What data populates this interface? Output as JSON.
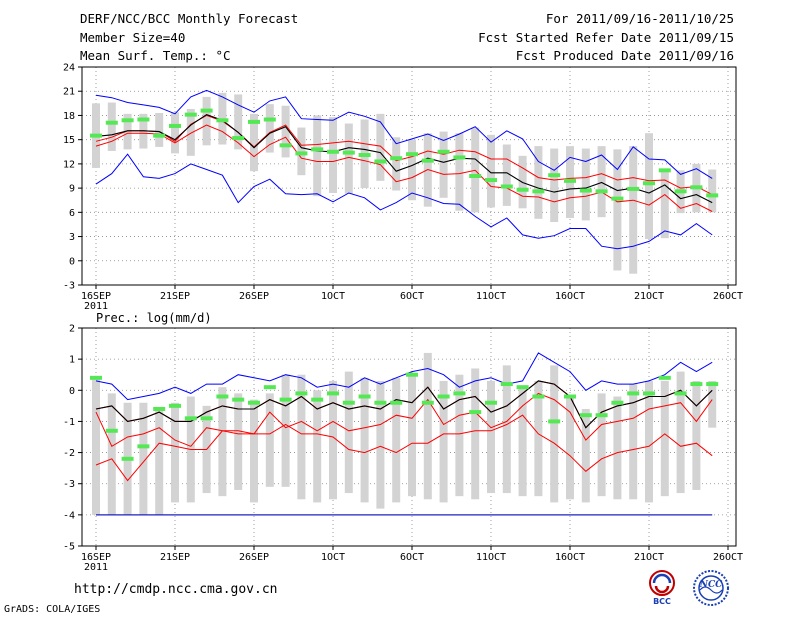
{
  "header": {
    "title": "DERF/NCC/BCC Monthly Forecast",
    "member_size": "Member Size=40",
    "variable": "Mean Surf. Temp.: °C",
    "forecast_period": "For 2011/09/16-2011/10/25",
    "refer_date": "Fcst Started Refer Date 2011/09/15",
    "produced_date": "Fcst Produced Date 2011/09/16"
  },
  "footer": {
    "url": "http://cmdp.ncc.cma.gov.cn",
    "credit": "GrADS: COLA/IGES",
    "logo_bcc": "BCC",
    "logo_ncc": "NCC"
  },
  "colors": {
    "max_line": "#0000ff",
    "min_line": "#ff0000",
    "ensemble_mean": "#000000",
    "bar": "#d3d3d3",
    "marker": "#55e855",
    "grid": "#888888",
    "bottom_floor": "#2020c0"
  },
  "chart_data": [
    {
      "type": "line",
      "title": "Mean Surf. Temp.: °C",
      "ylabel": "°C",
      "ylim": [
        -3,
        24
      ],
      "yticks": [
        -3,
        0,
        3,
        6,
        9,
        12,
        15,
        18,
        21,
        24
      ],
      "x_day_index": [
        0,
        1,
        2,
        3,
        4,
        5,
        6,
        7,
        8,
        9,
        10,
        11,
        12,
        13,
        14,
        15,
        16,
        17,
        18,
        19,
        20,
        21,
        22,
        23,
        24,
        25,
        26,
        27,
        28,
        29,
        30,
        31,
        32,
        33,
        34,
        35,
        36,
        37,
        38,
        39
      ],
      "xticks": [
        {
          "index": 0,
          "label": "16SEP",
          "sublabel": "2011"
        },
        {
          "index": 5,
          "label": "21SEP"
        },
        {
          "index": 10,
          "label": "26SEP"
        },
        {
          "index": 15,
          "label": "1OCT"
        },
        {
          "index": 20,
          "label": "6OCT"
        },
        {
          "index": 25,
          "label": "11OCT"
        },
        {
          "index": 30,
          "label": "16OCT"
        },
        {
          "index": 35,
          "label": "21OCT"
        },
        {
          "index": 40,
          "label": "26OCT"
        }
      ],
      "series": [
        {
          "name": "max",
          "values": [
            20.5,
            20.2,
            19.6,
            19.3,
            19.0,
            18.2,
            20.3,
            21.1,
            20.3,
            19.3,
            18.4,
            19.8,
            20.3,
            17.6,
            17.5,
            17.4,
            18.4,
            17.9,
            17.2,
            14.5,
            15.1,
            15.7,
            14.9,
            15.7,
            16.6,
            14.7,
            16.1,
            15.1,
            12.3,
            11.2,
            12.8,
            12.3,
            13.1,
            11.3,
            14.1,
            12.6,
            12.5,
            10.7,
            11.4,
            10.2
          ]
        },
        {
          "name": "upper",
          "values": [
            14.8,
            15.3,
            16.1,
            16.1,
            16.0,
            14.8,
            16.9,
            18.0,
            17.3,
            15.9,
            14.1,
            15.9,
            16.8,
            14.3,
            14.4,
            14.6,
            14.8,
            14.5,
            14.2,
            12.4,
            12.9,
            13.6,
            13.2,
            13.7,
            13.5,
            12.6,
            12.6,
            11.5,
            10.3,
            10.0,
            10.2,
            10.3,
            10.8,
            10.0,
            10.3,
            9.9,
            10.0,
            9.0,
            9.2,
            8.2
          ]
        },
        {
          "name": "mean",
          "values": [
            15.4,
            15.6,
            16.1,
            16.1,
            16.0,
            15.0,
            16.8,
            18.1,
            17.4,
            15.9,
            14.0,
            15.8,
            16.6,
            14.0,
            13.6,
            13.5,
            14.0,
            13.8,
            13.4,
            11.1,
            11.8,
            12.7,
            12.2,
            12.7,
            12.6,
            10.9,
            10.9,
            9.7,
            9.0,
            8.5,
            8.9,
            9.0,
            9.7,
            8.7,
            9.0,
            8.4,
            9.4,
            7.7,
            8.2,
            7.2
          ]
        },
        {
          "name": "lower",
          "values": [
            14.2,
            14.8,
            15.8,
            15.8,
            15.7,
            14.6,
            15.8,
            16.8,
            16.0,
            14.6,
            12.9,
            14.4,
            15.3,
            12.7,
            12.3,
            12.3,
            12.8,
            12.4,
            11.9,
            9.8,
            10.3,
            11.3,
            10.7,
            10.8,
            11.2,
            9.2,
            9.0,
            8.0,
            7.9,
            7.3,
            7.8,
            8.0,
            8.5,
            7.3,
            7.5,
            6.9,
            8.2,
            6.5,
            7.1,
            6.1
          ]
        },
        {
          "name": "min",
          "values": [
            9.5,
            10.8,
            13.2,
            10.4,
            10.2,
            10.8,
            12.0,
            11.3,
            10.6,
            7.2,
            9.2,
            10.1,
            8.3,
            8.2,
            8.3,
            7.3,
            8.4,
            7.8,
            6.3,
            7.2,
            8.4,
            7.8,
            7.1,
            7.0,
            5.5,
            4.2,
            5.3,
            3.2,
            2.8,
            3.1,
            4.0,
            4.0,
            1.8,
            1.5,
            1.8,
            2.4,
            3.7,
            3.2,
            4.6,
            3.2
          ]
        },
        {
          "name": "ensemble_box_top",
          "values": [
            19.5,
            19.6,
            18.2,
            18.2,
            18.3,
            18.4,
            18.8,
            20.3,
            20.8,
            20.6,
            18.2,
            19.4,
            19.2,
            16.5,
            18.0,
            17.8,
            17.0,
            17.5,
            18.2,
            15.3,
            15.0,
            15.8,
            16.0,
            15.8,
            16.5,
            15.6,
            14.4,
            13.0,
            14.2,
            13.9,
            14.2,
            13.9,
            14.2,
            13.8,
            14.2,
            15.8,
            11.4,
            11.2,
            12.0,
            11.3
          ]
        },
        {
          "name": "ensemble_box_bottom",
          "values": [
            11.5,
            13.6,
            13.8,
            13.9,
            14.1,
            13.3,
            13.0,
            14.3,
            14.4,
            13.8,
            11.1,
            13.4,
            12.8,
            10.6,
            8.0,
            8.4,
            8.3,
            9.0,
            9.9,
            8.7,
            7.5,
            6.7,
            7.8,
            6.2,
            6.0,
            6.6,
            6.8,
            6.5,
            5.2,
            4.8,
            5.3,
            5.0,
            5.4,
            -1.2,
            -1.6,
            2.7,
            2.8,
            5.9,
            6.0,
            6.0
          ]
        },
        {
          "name": "marker",
          "values": [
            15.5,
            17.1,
            17.4,
            17.5,
            15.5,
            16.7,
            18.1,
            18.6,
            17.4,
            15.2,
            17.2,
            17.5,
            14.3,
            13.3,
            13.8,
            13.5,
            13.4,
            13.1,
            12.3,
            12.7,
            13.2,
            12.4,
            13.5,
            12.8,
            10.5,
            10.0,
            9.2,
            8.8,
            8.6,
            10.6,
            9.9,
            8.7,
            8.6,
            7.7,
            8.9,
            9.6,
            11.2,
            8.6,
            9.1,
            8.1
          ]
        }
      ]
    },
    {
      "type": "line",
      "title": "Prec.: log(mm/d)",
      "ylabel": "log(mm/d)",
      "ylim": [
        -5,
        2
      ],
      "yticks": [
        -5,
        -4,
        -3,
        -2,
        -1,
        0,
        1,
        2
      ],
      "x_day_index": [
        0,
        1,
        2,
        3,
        4,
        5,
        6,
        7,
        8,
        9,
        10,
        11,
        12,
        13,
        14,
        15,
        16,
        17,
        18,
        19,
        20,
        21,
        22,
        23,
        24,
        25,
        26,
        27,
        28,
        29,
        30,
        31,
        32,
        33,
        34,
        35,
        36,
        37,
        38,
        39
      ],
      "xticks": [
        {
          "index": 0,
          "label": "16SEP",
          "sublabel": "2011"
        },
        {
          "index": 5,
          "label": "21SEP"
        },
        {
          "index": 10,
          "label": "26SEP"
        },
        {
          "index": 15,
          "label": "1OCT"
        },
        {
          "index": 20,
          "label": "6OCT"
        },
        {
          "index": 25,
          "label": "11OCT"
        },
        {
          "index": 30,
          "label": "16OCT"
        },
        {
          "index": 35,
          "label": "21OCT"
        },
        {
          "index": 40,
          "label": "26OCT"
        }
      ],
      "series": [
        {
          "name": "max",
          "values": [
            0.3,
            0.2,
            -0.3,
            -0.2,
            -0.1,
            0.1,
            -0.1,
            0.2,
            0.2,
            0.5,
            0.4,
            0.3,
            0.5,
            0.4,
            0.1,
            0.2,
            0.1,
            0.4,
            0.2,
            0.4,
            0.6,
            0.7,
            0.5,
            0.1,
            0.3,
            0.4,
            0.2,
            0.3,
            1.2,
            0.9,
            0.6,
            0.0,
            0.3,
            0.2,
            0.2,
            0.3,
            0.5,
            0.9,
            0.6,
            0.9
          ]
        },
        {
          "name": "upper",
          "values": [
            -0.6,
            -0.5,
            -1.0,
            -0.9,
            -0.7,
            -1.0,
            -1.0,
            -0.7,
            -0.5,
            -0.6,
            -0.6,
            -0.3,
            -0.5,
            -0.2,
            -0.6,
            -0.4,
            -0.6,
            -0.5,
            -0.6,
            -0.3,
            -0.4,
            0.1,
            -0.6,
            -0.3,
            -0.2,
            -0.7,
            -0.5,
            -0.1,
            0.3,
            0.2,
            -0.2,
            -1.2,
            -0.7,
            -0.5,
            -0.4,
            -0.2,
            -0.2,
            0.0,
            -0.5,
            0.0
          ]
        },
        {
          "name": "mean",
          "values": [
            -0.6,
            -0.5,
            -1.0,
            -0.9,
            -0.7,
            -1.0,
            -1.0,
            -0.7,
            -0.5,
            -0.6,
            -0.6,
            -0.3,
            -0.5,
            -0.2,
            -0.6,
            -0.4,
            -0.6,
            -0.5,
            -0.6,
            -0.3,
            -0.4,
            0.1,
            -0.6,
            -0.3,
            -0.2,
            -0.7,
            -0.5,
            -0.1,
            0.3,
            0.2,
            -0.2,
            -1.2,
            -0.7,
            -0.5,
            -0.4,
            -0.2,
            -0.2,
            0.0,
            -0.5,
            0.0
          ]
        },
        {
          "name": "lower",
          "values": [
            -0.7,
            -1.8,
            -1.5,
            -1.4,
            -1.2,
            -1.6,
            -1.8,
            -1.2,
            -1.3,
            -1.3,
            -1.4,
            -0.7,
            -1.2,
            -1.0,
            -1.3,
            -1.0,
            -1.3,
            -1.2,
            -1.1,
            -0.8,
            -0.9,
            -0.3,
            -1.1,
            -0.8,
            -0.7,
            -1.2,
            -1.0,
            -0.5,
            -0.1,
            -0.3,
            -0.7,
            -1.6,
            -1.1,
            -1.0,
            -0.9,
            -0.6,
            -0.5,
            -0.4,
            -1.0,
            -0.3
          ]
        },
        {
          "name": "min",
          "values": [
            -2.4,
            -2.2,
            -2.9,
            -2.3,
            -1.7,
            -1.8,
            -1.9,
            -1.9,
            -1.3,
            -1.4,
            -1.4,
            -1.4,
            -1.1,
            -1.4,
            -1.4,
            -1.5,
            -1.9,
            -2.0,
            -1.8,
            -2.0,
            -1.7,
            -1.7,
            -1.4,
            -1.4,
            -1.3,
            -1.3,
            -1.1,
            -0.8,
            -1.4,
            -1.7,
            -2.1,
            -2.6,
            -2.2,
            -2.0,
            -1.9,
            -1.8,
            -1.4,
            -1.8,
            -1.7,
            -2.1
          ]
        },
        {
          "name": "ensemble_box_top",
          "values": [
            0.4,
            -0.1,
            -0.4,
            -0.4,
            -0.6,
            -0.4,
            -0.2,
            -0.5,
            0.1,
            -0.1,
            -0.3,
            -0.1,
            0.5,
            0.5,
            0.0,
            0.3,
            0.6,
            0.4,
            0.3,
            0.4,
            0.5,
            1.2,
            0.3,
            0.5,
            0.7,
            0.3,
            0.8,
            0.1,
            0.3,
            0.8,
            -0.2,
            -0.6,
            -0.1,
            -0.2,
            0.2,
            0.3,
            0.3,
            0.6,
            0.3,
            0.3
          ]
        },
        {
          "name": "ensemble_box_bottom",
          "values": [
            -4.0,
            -4.0,
            -4.0,
            -4.0,
            -4.0,
            -3.6,
            -3.6,
            -3.3,
            -3.4,
            -3.2,
            -3.6,
            -3.1,
            -3.1,
            -3.5,
            -3.6,
            -3.5,
            -3.3,
            -3.6,
            -3.8,
            -3.6,
            -3.4,
            -3.5,
            -3.6,
            -3.4,
            -3.5,
            -3.3,
            -3.3,
            -3.4,
            -3.4,
            -3.6,
            -3.5,
            -3.6,
            -3.4,
            -3.5,
            -3.5,
            -3.6,
            -3.4,
            -3.3,
            -3.2,
            -1.2
          ]
        },
        {
          "name": "marker",
          "values": [
            0.4,
            -1.3,
            -2.2,
            -1.8,
            -0.6,
            -0.5,
            -0.9,
            -0.9,
            -0.2,
            -0.3,
            -0.4,
            0.1,
            -0.3,
            -0.1,
            -0.3,
            -0.1,
            -0.4,
            -0.2,
            -0.4,
            -0.4,
            0.5,
            -0.4,
            -0.2,
            -0.1,
            -0.7,
            -0.4,
            0.2,
            0.1,
            -0.2,
            -1.0,
            -0.2,
            -0.8,
            -0.8,
            -0.4,
            -0.1,
            -0.1,
            0.4,
            -0.1,
            0.2,
            0.2
          ]
        }
      ],
      "floor_value": -4
    }
  ]
}
